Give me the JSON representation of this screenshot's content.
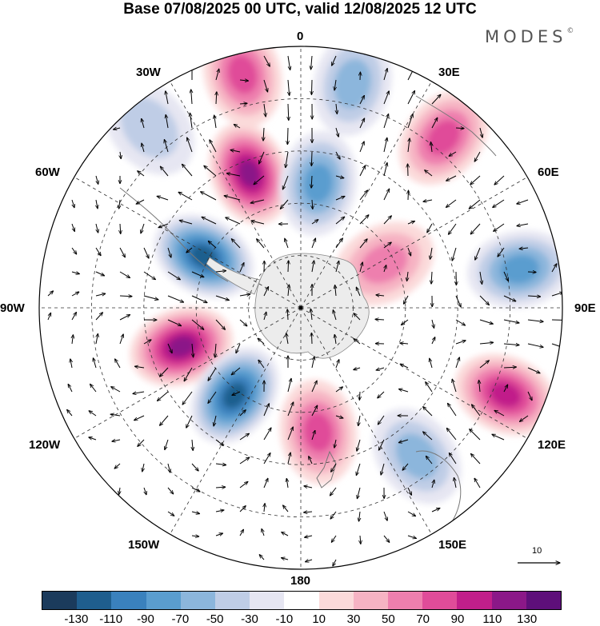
{
  "title": "Base 07/08/2025 00 UTC, valid 12/08/2025 12 UTC",
  "brand": "MODES",
  "brand_mark": "©",
  "longitude_labels": {
    "top": "0",
    "e30": "30E",
    "e60": "60E",
    "e90": "90E",
    "e120": "120E",
    "e150": "150E",
    "bottom": "180",
    "w150": "150W",
    "w120": "120W",
    "w90": "90W",
    "w60": "60W",
    "w30": "30W"
  },
  "reference_vector": {
    "label": "10"
  },
  "colorbar": {
    "colors": [
      "#1b3b5c",
      "#1f5e8e",
      "#3a81bd",
      "#5a9dcf",
      "#8cb6dc",
      "#bfcde6",
      "#e6e6f2",
      "#ffffff",
      "#fbdada",
      "#f6b3c3",
      "#ee7fae",
      "#e04c99",
      "#c11f8a",
      "#8b1888",
      "#5e0f7a"
    ],
    "ticks": [
      "-130",
      "-110",
      "-90",
      "-70",
      "-50",
      "-30",
      "-10",
      "10",
      "30",
      "50",
      "70",
      "90",
      "110",
      "130"
    ]
  },
  "anomalies": [
    {
      "name": "positive anomaly 30W sector",
      "value": 110,
      "lon": -21,
      "r": 0.55
    },
    {
      "name": "negative anomaly 60W-90W sector",
      "value": -120,
      "lon": -62,
      "r": 0.42
    },
    {
      "name": "positive anomaly 90W-120W sector",
      "value": 120,
      "lon": -108,
      "r": 0.48
    },
    {
      "name": "negative anomaly 150W sector",
      "value": -120,
      "lon": -143,
      "r": 0.42
    },
    {
      "name": "positive anomaly 180 sector",
      "value": 70,
      "lon": 172,
      "r": 0.48
    },
    {
      "name": "negative anomaly 150E sector",
      "value": -60,
      "lon": 142,
      "r": 0.72
    },
    {
      "name": "positive anomaly 120E sector",
      "value": 100,
      "lon": 113,
      "r": 0.85
    },
    {
      "name": "negative anomaly 90E sector",
      "value": -70,
      "lon": 80,
      "r": 0.85
    },
    {
      "name": "positive anomaly 60E sector",
      "value": 60,
      "lon": 62,
      "r": 0.36
    },
    {
      "name": "positive anomaly 30E sector",
      "value": 80,
      "lon": 40,
      "r": 0.85
    },
    {
      "name": "negative anomaly 0 sector",
      "value": -70,
      "lon": 8,
      "r": 0.48
    },
    {
      "name": "negative anomaly north of 0",
      "value": -60,
      "lon": 13,
      "r": 0.88
    },
    {
      "name": "positive anomaly near 30W rim",
      "value": 70,
      "lon": -14,
      "r": 0.92
    },
    {
      "name": "negative anomaly 45W rim",
      "value": -40,
      "lon": -40,
      "r": 0.9
    }
  ]
}
